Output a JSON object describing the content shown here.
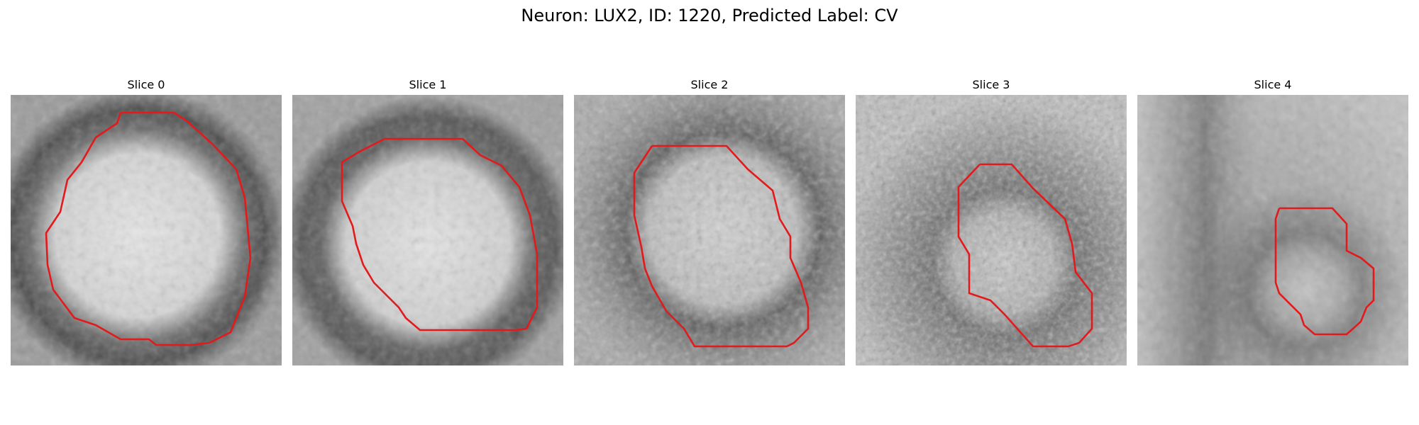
{
  "figure": {
    "title": "Neuron: LUX2, ID: 1220, Predicted Label: CV"
  },
  "panels": [
    {
      "title": "Slice 0",
      "outline_color": "#e31a1c"
    },
    {
      "title": "Slice 1",
      "outline_color": "#e31a1c"
    },
    {
      "title": "Slice 2",
      "outline_color": "#e31a1c"
    },
    {
      "title": "Slice 3",
      "outline_color": "#e31a1c"
    },
    {
      "title": "Slice 4",
      "outline_color": "#e31a1c"
    }
  ]
}
